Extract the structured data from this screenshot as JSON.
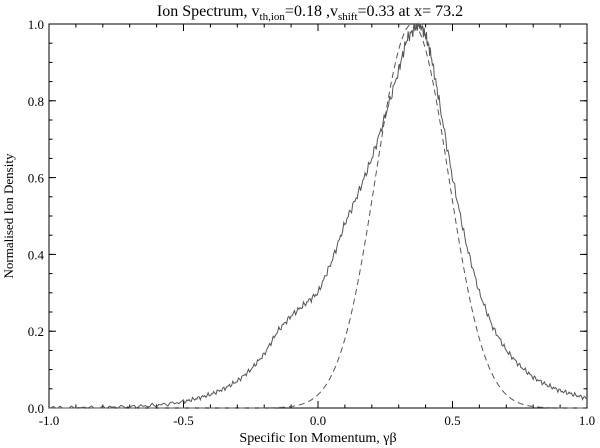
{
  "chart_data": {
    "type": "line",
    "title": {
      "prefix": "Ion Spectrum, v",
      "sub1": "th,ion",
      "mid1": "=0.18 ,v",
      "sub2": "shift",
      "mid2": "=0.33 at x=  73.2"
    },
    "xlabel": "Specific Ion Momentum, γβ",
    "ylabel": "Normalised Ion Density",
    "xlim": [
      -1.0,
      1.0
    ],
    "ylim": [
      0.0,
      1.0
    ],
    "xticks": [
      {
        "value": -1.0,
        "label": "-1.0"
      },
      {
        "value": -0.5,
        "label": "-0.5"
      },
      {
        "value": 0.0,
        "label": "0.0"
      },
      {
        "value": 0.5,
        "label": "0.5"
      },
      {
        "value": 1.0,
        "label": "1.0"
      }
    ],
    "yticks": [
      {
        "value": 0.0,
        "label": "0.0"
      },
      {
        "value": 0.2,
        "label": "0.2"
      },
      {
        "value": 0.4,
        "label": "0.4"
      },
      {
        "value": 0.6,
        "label": "0.6"
      },
      {
        "value": 0.8,
        "label": "0.8"
      },
      {
        "value": 1.0,
        "label": "1.0"
      }
    ],
    "series": [
      {
        "style": "solid",
        "color": "#555555",
        "x": [
          -1.0,
          -0.9,
          -0.8,
          -0.7,
          -0.6,
          -0.5,
          -0.45,
          -0.4,
          -0.35,
          -0.3,
          -0.25,
          -0.2,
          -0.15,
          -0.1,
          -0.05,
          0.0,
          0.05,
          0.1,
          0.15,
          0.2,
          0.25,
          0.3,
          0.33,
          0.36,
          0.38,
          0.4,
          0.42,
          0.45,
          0.5,
          0.55,
          0.6,
          0.65,
          0.7,
          0.75,
          0.8,
          0.85,
          0.9,
          0.95,
          1.0
        ],
        "y": [
          0.0,
          0.0,
          0.001,
          0.003,
          0.007,
          0.016,
          0.025,
          0.035,
          0.05,
          0.07,
          0.1,
          0.14,
          0.2,
          0.24,
          0.27,
          0.3,
          0.38,
          0.48,
          0.56,
          0.65,
          0.76,
          0.88,
          0.96,
          0.99,
          1.0,
          0.97,
          0.92,
          0.8,
          0.6,
          0.43,
          0.3,
          0.21,
          0.15,
          0.11,
          0.08,
          0.06,
          0.045,
          0.035,
          0.025
        ]
      },
      {
        "style": "dashed",
        "color": "#555555",
        "gauss_mu": 0.35,
        "gauss_sigma": 0.135
      }
    ]
  }
}
